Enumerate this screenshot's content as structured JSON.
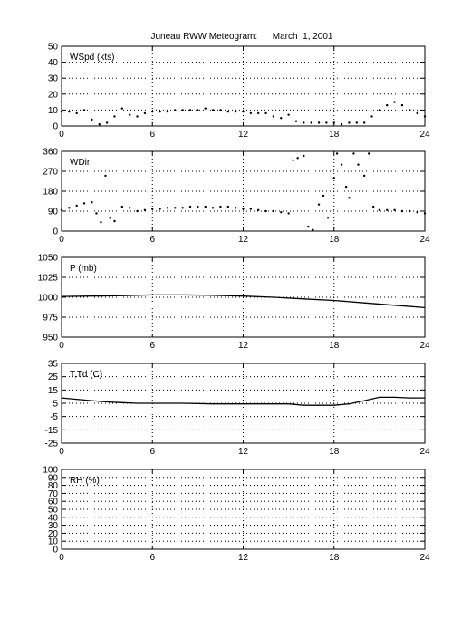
{
  "figure": {
    "title": "Juneau RWW Meteogram:      March  1, 2001"
  },
  "chart_data": [
    {
      "type": "scatter",
      "label": "WSpd (kts)",
      "xlim": [
        0,
        24
      ],
      "ylim": [
        0,
        50
      ],
      "xticks": [
        0,
        6,
        12,
        18,
        24
      ],
      "yticks": [
        0,
        10,
        20,
        30,
        40,
        50
      ],
      "grid": true,
      "series": [
        {
          "x": [
            0,
            0.5,
            1,
            1.5,
            2,
            2.5,
            3,
            3.5,
            4,
            4.5,
            5,
            5.5,
            6,
            6.5,
            7,
            7.5,
            8,
            8.5,
            9,
            9.5,
            10,
            10.5,
            11,
            11.5,
            12,
            12.5,
            13,
            13.5,
            14,
            14.5,
            15,
            15.5,
            16,
            16.5,
            17,
            17.5,
            18,
            18.5,
            19,
            19.5,
            20,
            20.5,
            21,
            21.5,
            22,
            22.5,
            23,
            23.5,
            24
          ],
          "y": [
            9,
            9,
            8,
            10,
            4,
            1,
            2,
            6,
            11,
            7,
            6,
            8,
            9,
            9,
            9,
            10,
            10,
            10,
            10,
            11,
            10,
            10,
            9,
            9,
            9,
            8,
            8,
            8,
            6,
            5,
            7,
            3,
            2,
            2,
            2,
            2,
            2,
            1,
            2,
            2,
            2,
            6,
            10,
            13,
            15,
            13,
            10,
            8,
            6
          ]
        }
      ]
    },
    {
      "type": "scatter",
      "label": "WDir",
      "xlim": [
        0,
        24
      ],
      "ylim": [
        0,
        360
      ],
      "xticks": [
        0,
        6,
        12,
        18,
        24
      ],
      "yticks": [
        0,
        90,
        180,
        270,
        360
      ],
      "grid": true,
      "series": [
        {
          "x": [
            0,
            0.5,
            1,
            1.5,
            2,
            2.3,
            2.6,
            2.9,
            3.2,
            3.5,
            4,
            4.5,
            5,
            5.5,
            6,
            6.5,
            7,
            7.5,
            8,
            8.5,
            9,
            9.5,
            10,
            10.5,
            11,
            11.5,
            12,
            12.5,
            13,
            13.5,
            14,
            14.5,
            15,
            15.3,
            15.6,
            16,
            16.3,
            16.6,
            17,
            17.3,
            17.6,
            18,
            18.2,
            18.5,
            18.8,
            19,
            19.3,
            19.6,
            20,
            20.3,
            20.6,
            21,
            21.5,
            22,
            22.5,
            23,
            23.5,
            24
          ],
          "y": [
            95,
            105,
            115,
            125,
            130,
            80,
            40,
            250,
            60,
            45,
            110,
            105,
            90,
            95,
            100,
            100,
            105,
            105,
            105,
            110,
            110,
            110,
            105,
            110,
            110,
            105,
            100,
            100,
            95,
            90,
            90,
            85,
            80,
            320,
            330,
            340,
            20,
            5,
            120,
            160,
            60,
            240,
            350,
            300,
            200,
            150,
            350,
            300,
            250,
            350,
            110,
            95,
            95,
            95,
            90,
            90,
            85,
            80
          ]
        }
      ]
    },
    {
      "type": "line",
      "label": "P (mb)",
      "xlim": [
        0,
        24
      ],
      "ylim": [
        950,
        1050
      ],
      "xticks": [
        0,
        6,
        12,
        18,
        24
      ],
      "yticks": [
        950,
        975,
        1000,
        1025,
        1050
      ],
      "grid": true,
      "series": [
        {
          "x": [
            0,
            2,
            4,
            6,
            8,
            10,
            12,
            14,
            16,
            18,
            20,
            22,
            24
          ],
          "y": [
            1001,
            1001.5,
            1002,
            1003,
            1003,
            1002.5,
            1001.5,
            1000,
            998,
            996,
            993,
            990,
            987
          ]
        }
      ]
    },
    {
      "type": "line",
      "label": "T,Td (C)",
      "xlim": [
        0,
        24
      ],
      "ylim": [
        -25,
        35
      ],
      "xticks": [
        0,
        6,
        12,
        18,
        24
      ],
      "yticks": [
        -25,
        -15,
        -5,
        5,
        15,
        25,
        35
      ],
      "grid": true,
      "series": [
        {
          "x": [
            0,
            1,
            2,
            3,
            4,
            5,
            6,
            8,
            10,
            12,
            14,
            15,
            16,
            17,
            18,
            19,
            20,
            21,
            22,
            23,
            24
          ],
          "y": [
            9,
            8,
            7,
            6,
            5.5,
            5,
            5,
            5,
            4.5,
            4.5,
            4.5,
            4.5,
            3.5,
            3.5,
            3.5,
            4.5,
            7,
            9.5,
            9.5,
            9,
            9
          ]
        }
      ]
    },
    {
      "type": "line",
      "label": "RH (%)",
      "xlim": [
        0,
        24
      ],
      "ylim": [
        0,
        100
      ],
      "xticks": [
        0,
        6,
        12,
        18,
        24
      ],
      "yticks": [
        0,
        10,
        20,
        30,
        40,
        50,
        60,
        70,
        80,
        90,
        100
      ],
      "grid": true,
      "series": []
    }
  ]
}
